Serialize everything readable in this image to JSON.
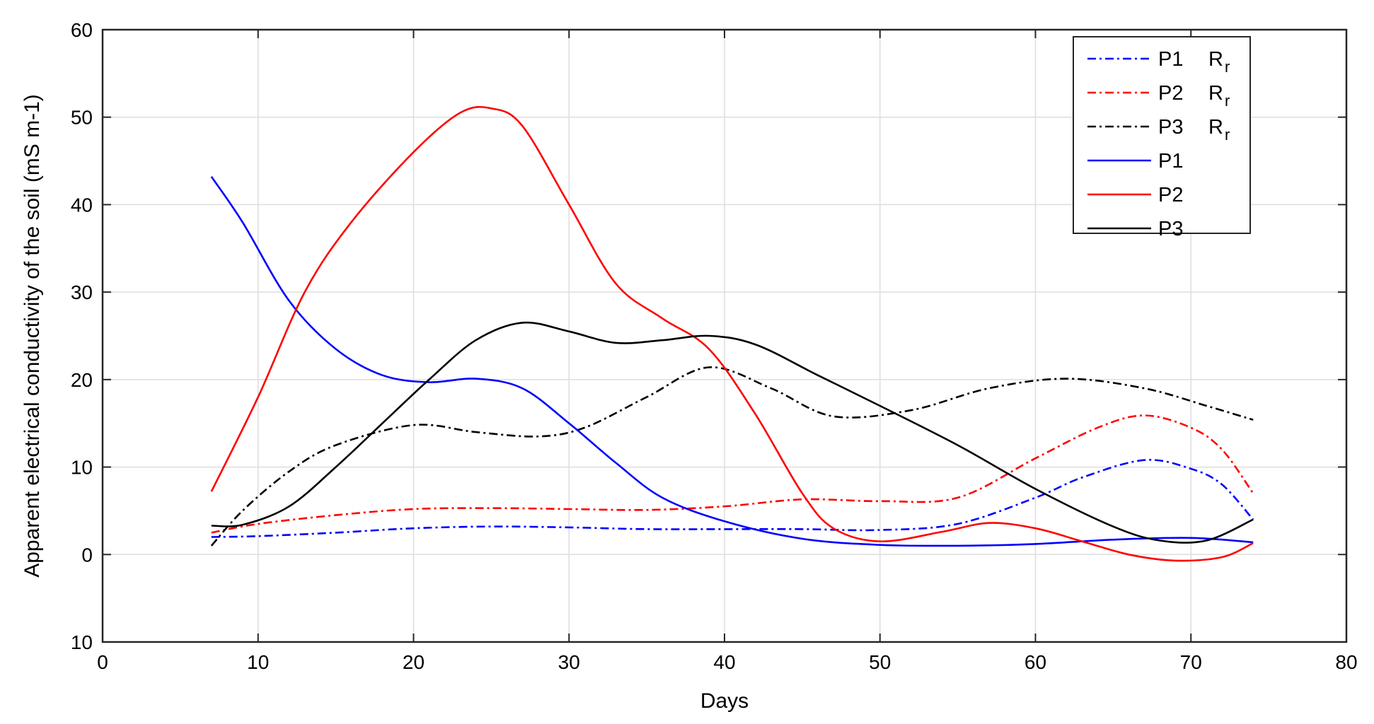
{
  "chart_data": {
    "type": "line",
    "title": "",
    "xlabel": "Days",
    "ylabel": "Apparent electrical conductivity of the soil (mS m-1)",
    "xlim": [
      0,
      80
    ],
    "ylim": [
      -10,
      60
    ],
    "x_ticks": [
      0,
      10,
      20,
      30,
      40,
      50,
      60,
      70,
      80
    ],
    "y_ticks": [
      {
        "value": 60,
        "label": "60"
      },
      {
        "value": 50,
        "label": "50"
      },
      {
        "value": 40,
        "label": "40"
      },
      {
        "value": 30,
        "label": "30"
      },
      {
        "value": 20,
        "label": "20"
      },
      {
        "value": 10,
        "label": "10"
      },
      {
        "value": 0,
        "label": "0"
      },
      {
        "value": -10,
        "label": "10"
      }
    ],
    "grid": true,
    "legend_position": "top-right",
    "series": [
      {
        "name": "P1",
        "legend_main": "P1",
        "legend_sub": "R",
        "legend_subscript": "r",
        "color": "#0000ff",
        "dash": "dashdot",
        "points": [
          [
            7,
            2
          ],
          [
            10,
            2.1
          ],
          [
            15,
            2.5
          ],
          [
            20,
            3
          ],
          [
            25,
            3.2
          ],
          [
            30,
            3.1
          ],
          [
            35,
            2.9
          ],
          [
            40,
            2.9
          ],
          [
            45,
            2.9
          ],
          [
            50,
            2.8
          ],
          [
            55,
            3.5
          ],
          [
            60,
            6.5
          ],
          [
            63,
            8.8
          ],
          [
            67,
            10.8
          ],
          [
            70,
            9.8
          ],
          [
            72,
            8
          ],
          [
            74,
            4
          ]
        ]
      },
      {
        "name": "P2",
        "legend_main": "P2",
        "legend_sub": "R",
        "legend_subscript": "r",
        "color": "#ff0000",
        "dash": "dashdot",
        "points": [
          [
            7,
            2.5
          ],
          [
            10,
            3.5
          ],
          [
            15,
            4.5
          ],
          [
            20,
            5.2
          ],
          [
            25,
            5.3
          ],
          [
            30,
            5.2
          ],
          [
            35,
            5.1
          ],
          [
            40,
            5.5
          ],
          [
            45,
            6.3
          ],
          [
            50,
            6.1
          ],
          [
            55,
            6.5
          ],
          [
            60,
            11
          ],
          [
            64,
            14.5
          ],
          [
            67,
            15.9
          ],
          [
            70,
            14.5
          ],
          [
            72,
            12
          ],
          [
            74,
            7
          ]
        ]
      },
      {
        "name": "P3",
        "legend_main": "P3",
        "legend_sub": "R",
        "legend_subscript": "r",
        "color": "#000000",
        "dash": "dashdot",
        "points": [
          [
            7,
            1
          ],
          [
            9,
            5
          ],
          [
            12,
            9.5
          ],
          [
            15,
            12.5
          ],
          [
            20,
            14.8
          ],
          [
            24,
            14
          ],
          [
            28,
            13.5
          ],
          [
            31,
            14.5
          ],
          [
            35,
            18
          ],
          [
            39,
            21.4
          ],
          [
            43,
            19
          ],
          [
            47,
            15.8
          ],
          [
            52,
            16.5
          ],
          [
            57,
            19
          ],
          [
            62,
            20.1
          ],
          [
            67,
            19
          ],
          [
            71,
            17
          ],
          [
            74,
            15.4
          ]
        ]
      },
      {
        "name": "P1",
        "legend_main": "P1",
        "legend_sub": "",
        "legend_subscript": "",
        "color": "#0000ff",
        "dash": "solid",
        "points": [
          [
            7,
            43.2
          ],
          [
            9,
            38
          ],
          [
            12,
            29
          ],
          [
            15,
            23.5
          ],
          [
            18,
            20.5
          ],
          [
            21,
            19.7
          ],
          [
            24,
            20.1
          ],
          [
            27,
            19
          ],
          [
            30,
            15
          ],
          [
            33,
            10.5
          ],
          [
            36,
            6.5
          ],
          [
            40,
            3.8
          ],
          [
            45,
            1.8
          ],
          [
            50,
            1.1
          ],
          [
            55,
            1
          ],
          [
            60,
            1.2
          ],
          [
            65,
            1.7
          ],
          [
            70,
            1.9
          ],
          [
            74,
            1.4
          ]
        ]
      },
      {
        "name": "P2",
        "legend_main": "P2",
        "legend_sub": "",
        "legend_subscript": "",
        "color": "#ff0000",
        "dash": "solid",
        "points": [
          [
            7,
            7.2
          ],
          [
            10,
            18
          ],
          [
            13,
            30
          ],
          [
            16,
            38
          ],
          [
            20,
            46
          ],
          [
            23,
            50.5
          ],
          [
            25,
            51
          ],
          [
            27,
            49
          ],
          [
            30,
            40
          ],
          [
            33,
            31
          ],
          [
            36,
            27
          ],
          [
            39,
            23.5
          ],
          [
            42,
            16
          ],
          [
            45,
            7
          ],
          [
            47,
            3
          ],
          [
            50,
            1.5
          ],
          [
            54,
            2.6
          ],
          [
            57,
            3.6
          ],
          [
            60,
            3
          ],
          [
            63,
            1.5
          ],
          [
            66,
            0
          ],
          [
            69,
            -0.7
          ],
          [
            72,
            -0.3
          ],
          [
            74,
            1.3
          ]
        ]
      },
      {
        "name": "P3",
        "legend_main": "P3",
        "legend_sub": "",
        "legend_subscript": "",
        "color": "#000000",
        "dash": "solid",
        "points": [
          [
            7,
            3.3
          ],
          [
            9,
            3.4
          ],
          [
            12,
            5.5
          ],
          [
            15,
            10
          ],
          [
            18,
            15
          ],
          [
            21,
            20
          ],
          [
            24,
            24.5
          ],
          [
            27,
            26.5
          ],
          [
            30,
            25.5
          ],
          [
            33,
            24.2
          ],
          [
            36,
            24.5
          ],
          [
            39,
            25
          ],
          [
            42,
            24
          ],
          [
            46,
            20.5
          ],
          [
            50,
            17
          ],
          [
            55,
            12.5
          ],
          [
            60,
            7.5
          ],
          [
            65,
            3.2
          ],
          [
            68,
            1.6
          ],
          [
            71,
            1.6
          ],
          [
            74,
            4
          ]
        ]
      }
    ]
  }
}
